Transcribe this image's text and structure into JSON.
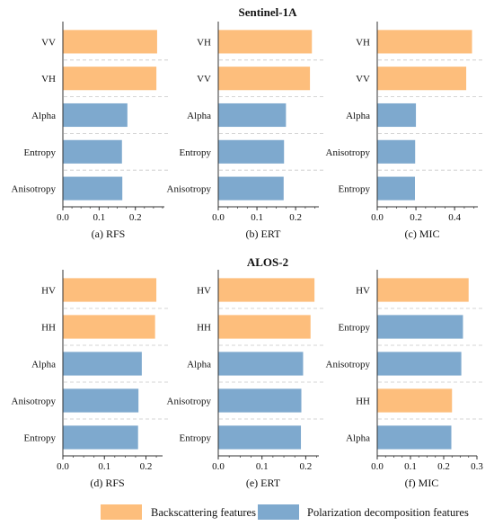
{
  "section_titles": [
    "Sentinel-1A",
    "ALOS-2"
  ],
  "colors": {
    "backscattering": "#FDBE7C",
    "polarization": "#7EA9CE",
    "axis": "#333333",
    "separator": "#c8c8c8"
  },
  "legend": {
    "backscattering_label": "Backscattering features",
    "polarization_label": "Polarization decomposition features"
  },
  "chart_data": [
    {
      "type": "bar",
      "orientation": "horizontal",
      "section": "Sentinel-1A",
      "caption": "(a) RFS",
      "categories": [
        "VV",
        "VH",
        "Alpha",
        "Entropy",
        "Anisotropy"
      ],
      "values": [
        0.26,
        0.258,
        0.178,
        0.163,
        0.164
      ],
      "groups": [
        "backscattering",
        "backscattering",
        "polarization",
        "polarization",
        "polarization"
      ],
      "xlim": [
        0,
        0.28
      ],
      "ticks": [
        0.0,
        0.1,
        0.2
      ],
      "tick_labels": [
        "0.0",
        "0.1",
        "0.2"
      ]
    },
    {
      "type": "bar",
      "orientation": "horizontal",
      "section": "Sentinel-1A",
      "caption": "(b) ERT",
      "categories": [
        "VH",
        "VV",
        "Alpha",
        "Entropy",
        "Anisotropy"
      ],
      "values": [
        0.242,
        0.237,
        0.175,
        0.17,
        0.169
      ],
      "groups": [
        "backscattering",
        "backscattering",
        "polarization",
        "polarization",
        "polarization"
      ],
      "xlim": [
        0,
        0.26
      ],
      "ticks": [
        0.0,
        0.1,
        0.2
      ],
      "tick_labels": [
        "0.0",
        "0.1",
        "0.2"
      ]
    },
    {
      "type": "bar",
      "orientation": "horizontal",
      "section": "Sentinel-1A",
      "caption": "(c) MIC",
      "categories": [
        "VH",
        "VV",
        "Alpha",
        "Anisotropy",
        "Entropy"
      ],
      "values": [
        0.49,
        0.46,
        0.2,
        0.196,
        0.195
      ],
      "groups": [
        "backscattering",
        "backscattering",
        "polarization",
        "polarization",
        "polarization"
      ],
      "xlim": [
        0,
        0.52
      ],
      "ticks": [
        0.0,
        0.2,
        0.4
      ],
      "tick_labels": [
        "0.0",
        "0.2",
        "0.4"
      ]
    },
    {
      "type": "bar",
      "orientation": "horizontal",
      "section": "ALOS-2",
      "caption": "(d) RFS",
      "categories": [
        "HV",
        "HH",
        "Alpha",
        "Anisotropy",
        "Entropy"
      ],
      "values": [
        0.225,
        0.222,
        0.19,
        0.182,
        0.181
      ],
      "groups": [
        "backscattering",
        "backscattering",
        "polarization",
        "polarization",
        "polarization"
      ],
      "xlim": [
        0,
        0.24
      ],
      "ticks": [
        0.0,
        0.1,
        0.2
      ],
      "tick_labels": [
        "0.0",
        "0.1",
        "0.2"
      ]
    },
    {
      "type": "bar",
      "orientation": "horizontal",
      "section": "ALOS-2",
      "caption": "(e) ERT",
      "categories": [
        "HV",
        "HH",
        "Alpha",
        "Anisotropy",
        "Entropy"
      ],
      "values": [
        0.22,
        0.211,
        0.194,
        0.19,
        0.189
      ],
      "groups": [
        "backscattering",
        "backscattering",
        "polarization",
        "polarization",
        "polarization"
      ],
      "xlim": [
        0,
        0.23
      ],
      "ticks": [
        0.0,
        0.1,
        0.2
      ],
      "tick_labels": [
        "0.0",
        "0.1",
        "0.2"
      ]
    },
    {
      "type": "bar",
      "orientation": "horizontal",
      "section": "ALOS-2",
      "caption": "(f) MIC",
      "categories": [
        "HV",
        "Entropy",
        "Anisotropy",
        "HH",
        "Alpha"
      ],
      "values": [
        0.275,
        0.258,
        0.253,
        0.225,
        0.223
      ],
      "groups": [
        "backscattering",
        "polarization",
        "polarization",
        "backscattering",
        "polarization"
      ],
      "xlim": [
        0,
        0.3
      ],
      "ticks": [
        0.0,
        0.1,
        0.2,
        0.3
      ],
      "tick_labels": [
        "0.0",
        "0.1",
        "0.2",
        "0.3"
      ]
    }
  ]
}
